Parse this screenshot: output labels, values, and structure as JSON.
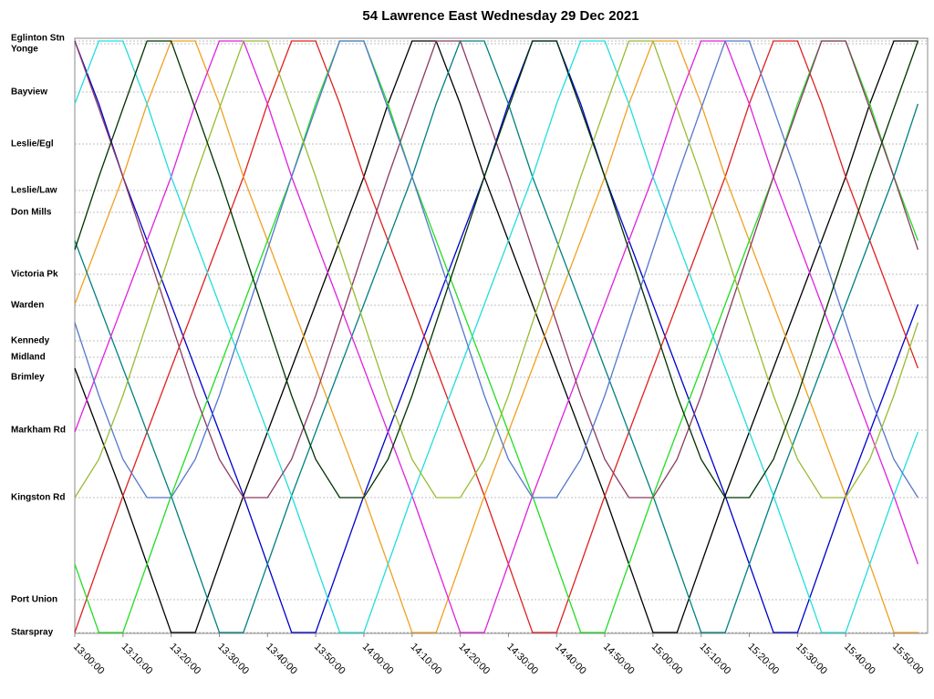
{
  "chart_data": {
    "type": "line",
    "title": "54 Lawrence East Wednesday 29 Dec 2021",
    "x": [
      780,
      785,
      790,
      795,
      800,
      805,
      810,
      815,
      820,
      825,
      830,
      835,
      840,
      845,
      850,
      855,
      860,
      865,
      870,
      875,
      880,
      885,
      890,
      895,
      900,
      905,
      910,
      915,
      920,
      925,
      930,
      935,
      940,
      945,
      950,
      955
    ],
    "xlim": [
      780,
      957
    ],
    "xticks": [
      {
        "value": 780,
        "label": "13:00:00"
      },
      {
        "value": 790,
        "label": "13:10:00"
      },
      {
        "value": 800,
        "label": "13:20:00"
      },
      {
        "value": 810,
        "label": "13:30:00"
      },
      {
        "value": 820,
        "label": "13:40:00"
      },
      {
        "value": 830,
        "label": "13:50:00"
      },
      {
        "value": 840,
        "label": "14:00:00"
      },
      {
        "value": 850,
        "label": "14:10:00"
      },
      {
        "value": 860,
        "label": "14:20:00"
      },
      {
        "value": 870,
        "label": "14:30:00"
      },
      {
        "value": 880,
        "label": "14:40:00"
      },
      {
        "value": 890,
        "label": "14:50:00"
      },
      {
        "value": 900,
        "label": "15:00:00"
      },
      {
        "value": 910,
        "label": "15:10:00"
      },
      {
        "value": 920,
        "label": "15:20:00"
      },
      {
        "value": 930,
        "label": "15:30:00"
      },
      {
        "value": 940,
        "label": "15:40:00"
      },
      {
        "value": 950,
        "label": "15:50:00"
      }
    ],
    "ylim": [
      0,
      650
    ],
    "yticks": [
      {
        "value": 649,
        "label": "Eglinton Stn"
      },
      {
        "value": 646,
        "label": "Yonge"
      },
      {
        "value": 593,
        "label": "Bayview"
      },
      {
        "value": 536,
        "label": "Leslie/Egl"
      },
      {
        "value": 485,
        "label": "Leslie/Law"
      },
      {
        "value": 461,
        "label": "Don Mills"
      },
      {
        "value": 393,
        "label": "Victoria Pk"
      },
      {
        "value": 359,
        "label": "Warden"
      },
      {
        "value": 320,
        "label": "Kennedy"
      },
      {
        "value": 302,
        "label": "Midland"
      },
      {
        "value": 280,
        "label": "Brimley"
      },
      {
        "value": 222,
        "label": "Markham Rd"
      },
      {
        "value": 148,
        "label": "Kingston Rd"
      },
      {
        "value": 36,
        "label": "Port Union"
      },
      {
        "value": 0,
        "label": "Starspray"
      }
    ],
    "grid": true,
    "series": [
      {
        "color": "#0000cc",
        "values": [
          649,
          580,
          500,
          430,
          360,
          290,
          220,
          150,
          75,
          0,
          0,
          75,
          150,
          220,
          290,
          360,
          430,
          500,
          580,
          649,
          649,
          580,
          500,
          430,
          360,
          290,
          220,
          150,
          75,
          0,
          0,
          75,
          150,
          220,
          290,
          360
        ]
      },
      {
        "color": "#000000",
        "values": [
          290,
          220,
          150,
          75,
          0,
          0,
          75,
          150,
          220,
          290,
          360,
          430,
          500,
          580,
          649,
          649,
          580,
          500,
          430,
          360,
          290,
          220,
          150,
          75,
          0,
          0,
          75,
          150,
          220,
          290,
          360,
          430,
          500,
          580,
          649,
          649
        ]
      },
      {
        "color": "#e02020",
        "values": [
          0,
          75,
          150,
          220,
          290,
          360,
          430,
          500,
          580,
          649,
          649,
          580,
          500,
          430,
          360,
          290,
          220,
          150,
          75,
          0,
          0,
          75,
          150,
          220,
          290,
          360,
          430,
          500,
          580,
          649,
          649,
          580,
          500,
          430,
          360,
          290
        ]
      },
      {
        "color": "#f0a020",
        "values": [
          360,
          430,
          500,
          580,
          649,
          649,
          580,
          500,
          430,
          360,
          290,
          220,
          150,
          75,
          0,
          0,
          75,
          150,
          220,
          290,
          360,
          430,
          500,
          580,
          649,
          649,
          580,
          500,
          430,
          360,
          290,
          220,
          150,
          75,
          0,
          0
        ]
      },
      {
        "color": "#008080",
        "values": [
          430,
          360,
          290,
          220,
          150,
          75,
          0,
          0,
          75,
          150,
          220,
          290,
          360,
          430,
          500,
          580,
          649,
          649,
          580,
          500,
          430,
          360,
          290,
          220,
          150,
          75,
          0,
          0,
          75,
          150,
          220,
          290,
          360,
          430,
          500,
          580
        ]
      },
      {
        "color": "#22dd22",
        "values": [
          75,
          0,
          0,
          75,
          150,
          220,
          290,
          360,
          430,
          500,
          580,
          649,
          649,
          580,
          500,
          430,
          360,
          290,
          220,
          150,
          75,
          0,
          0,
          75,
          150,
          220,
          290,
          360,
          430,
          500,
          580,
          649,
          649,
          580,
          500,
          430
        ]
      },
      {
        "color": "#dd22dd",
        "values": [
          220,
          290,
          360,
          430,
          500,
          580,
          649,
          649,
          580,
          500,
          430,
          360,
          290,
          220,
          150,
          75,
          0,
          0,
          75,
          150,
          220,
          290,
          360,
          430,
          500,
          580,
          649,
          649,
          580,
          500,
          430,
          360,
          290,
          220,
          150,
          75
        ]
      },
      {
        "color": "#22dddd",
        "values": [
          580,
          649,
          649,
          580,
          500,
          430,
          360,
          290,
          220,
          150,
          75,
          0,
          0,
          75,
          150,
          220,
          290,
          360,
          430,
          500,
          580,
          649,
          649,
          580,
          500,
          430,
          360,
          290,
          220,
          150,
          75,
          0,
          0,
          75,
          150,
          220
        ]
      },
      {
        "color": "#8b3a62",
        "values": [
          649,
          575,
          500,
          420,
          340,
          260,
          190,
          148,
          148,
          190,
          260,
          340,
          420,
          500,
          575,
          649,
          649,
          575,
          500,
          420,
          340,
          260,
          190,
          148,
          148,
          190,
          260,
          340,
          420,
          500,
          575,
          649,
          649,
          575,
          500,
          420
        ]
      },
      {
        "color": "#5577cc",
        "values": [
          340,
          260,
          190,
          148,
          148,
          190,
          260,
          340,
          420,
          500,
          575,
          649,
          649,
          575,
          500,
          420,
          340,
          260,
          190,
          148,
          148,
          190,
          260,
          340,
          420,
          500,
          575,
          649,
          649,
          575,
          500,
          420,
          340,
          260,
          190,
          148
        ]
      },
      {
        "color": "#99bb33",
        "values": [
          148,
          190,
          260,
          340,
          420,
          500,
          575,
          649,
          649,
          575,
          500,
          420,
          340,
          260,
          190,
          148,
          148,
          190,
          260,
          340,
          420,
          500,
          575,
          649,
          649,
          575,
          500,
          420,
          340,
          260,
          190,
          148,
          148,
          190,
          260,
          340
        ]
      },
      {
        "color": "#003300",
        "values": [
          420,
          500,
          575,
          649,
          649,
          575,
          500,
          420,
          340,
          260,
          190,
          148,
          148,
          190,
          260,
          340,
          420,
          500,
          575,
          649,
          649,
          575,
          500,
          420,
          340,
          260,
          190,
          148,
          148,
          190,
          260,
          340,
          420,
          500,
          575,
          649
        ]
      }
    ]
  }
}
